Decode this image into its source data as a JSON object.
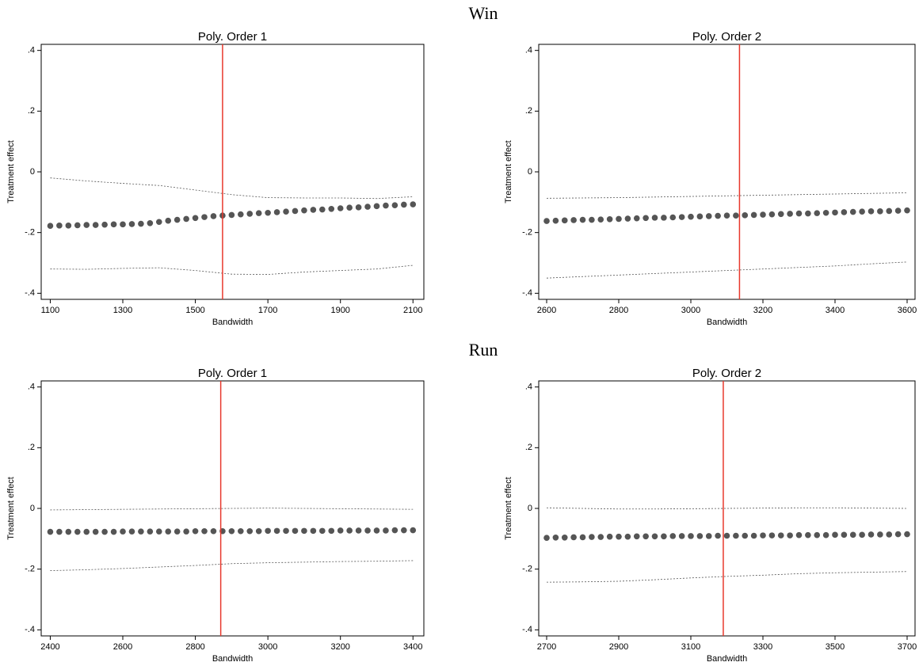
{
  "row_titles": [
    "Win",
    "Run"
  ],
  "chart_data": [
    {
      "type": "scatter",
      "title": "Poly. Order 1",
      "xlabel": "Bandwidth",
      "ylabel": "Treatment effect",
      "xlim": [
        1075,
        2130
      ],
      "ylim": [
        -0.42,
        0.42
      ],
      "xticks": [
        1100,
        1300,
        1500,
        1700,
        1900,
        2100
      ],
      "yticks": [
        {
          "value": -0.4,
          "label": "-.4"
        },
        {
          "value": -0.2,
          "label": "-.2"
        },
        0,
        {
          "value": 0.2,
          "label": ".2"
        },
        {
          "value": 0.4,
          "label": ".4"
        }
      ],
      "color": "#555555",
      "vline": 1575,
      "vline_color": "#e8382c",
      "x": [
        1100,
        1125,
        1150,
        1175,
        1200,
        1225,
        1250,
        1275,
        1300,
        1325,
        1350,
        1375,
        1400,
        1425,
        1450,
        1475,
        1500,
        1525,
        1550,
        1575,
        1600,
        1625,
        1650,
        1675,
        1700,
        1725,
        1750,
        1775,
        1800,
        1825,
        1850,
        1875,
        1900,
        1925,
        1950,
        1975,
        2000,
        2025,
        2050,
        2075,
        2100
      ],
      "values": [
        -0.178,
        -0.177,
        -0.177,
        -0.176,
        -0.175,
        -0.175,
        -0.174,
        -0.173,
        -0.173,
        -0.172,
        -0.171,
        -0.169,
        -0.165,
        -0.161,
        -0.158,
        -0.155,
        -0.152,
        -0.149,
        -0.146,
        -0.144,
        -0.142,
        -0.14,
        -0.138,
        -0.136,
        -0.135,
        -0.133,
        -0.131,
        -0.129,
        -0.127,
        -0.125,
        -0.124,
        -0.122,
        -0.12,
        -0.118,
        -0.117,
        -0.115,
        -0.113,
        -0.111,
        -0.11,
        -0.108,
        -0.107
      ],
      "ci_x": [
        1100,
        1200,
        1300,
        1400,
        1500,
        1600,
        1700,
        1800,
        1900,
        2000,
        2100
      ],
      "ci_upper": [
        -0.02,
        -0.03,
        -0.038,
        -0.045,
        -0.06,
        -0.075,
        -0.085,
        -0.086,
        -0.086,
        -0.088,
        -0.082
      ],
      "ci_lower": [
        -0.32,
        -0.321,
        -0.318,
        -0.316,
        -0.325,
        -0.337,
        -0.338,
        -0.33,
        -0.325,
        -0.32,
        -0.308
      ]
    },
    {
      "type": "scatter",
      "title": "Poly. Order 2",
      "xlabel": "Bandwidth",
      "ylabel": "Treatment effect",
      "xlim": [
        2578,
        3622
      ],
      "ylim": [
        -0.42,
        0.42
      ],
      "xticks": [
        2600,
        2800,
        3000,
        3200,
        3400,
        3600
      ],
      "yticks": [
        {
          "value": -0.4,
          "label": "-.4"
        },
        {
          "value": -0.2,
          "label": "-.2"
        },
        0,
        {
          "value": 0.2,
          "label": ".2"
        },
        {
          "value": 0.4,
          "label": ".4"
        }
      ],
      "color": "#555555",
      "vline": 3135,
      "vline_color": "#e8382c",
      "x": [
        2600,
        2625,
        2650,
        2675,
        2700,
        2725,
        2750,
        2775,
        2800,
        2825,
        2850,
        2875,
        2900,
        2925,
        2950,
        2975,
        3000,
        3025,
        3050,
        3075,
        3100,
        3125,
        3150,
        3175,
        3200,
        3225,
        3250,
        3275,
        3300,
        3325,
        3350,
        3375,
        3400,
        3425,
        3450,
        3475,
        3500,
        3525,
        3550,
        3575,
        3600
      ],
      "values": [
        -0.162,
        -0.161,
        -0.16,
        -0.159,
        -0.158,
        -0.158,
        -0.157,
        -0.156,
        -0.155,
        -0.154,
        -0.153,
        -0.152,
        -0.151,
        -0.151,
        -0.15,
        -0.149,
        -0.148,
        -0.147,
        -0.146,
        -0.145,
        -0.144,
        -0.144,
        -0.143,
        -0.142,
        -0.141,
        -0.14,
        -0.139,
        -0.138,
        -0.137,
        -0.137,
        -0.136,
        -0.135,
        -0.134,
        -0.133,
        -0.132,
        -0.131,
        -0.13,
        -0.13,
        -0.129,
        -0.128,
        -0.127
      ],
      "ci_x": [
        2600,
        2700,
        2800,
        2900,
        3000,
        3100,
        3200,
        3300,
        3400,
        3500,
        3600
      ],
      "ci_upper": [
        -0.087,
        -0.086,
        -0.085,
        -0.083,
        -0.081,
        -0.079,
        -0.077,
        -0.075,
        -0.073,
        -0.071,
        -0.069
      ],
      "ci_lower": [
        -0.35,
        -0.345,
        -0.34,
        -0.335,
        -0.33,
        -0.325,
        -0.32,
        -0.315,
        -0.31,
        -0.303,
        -0.297
      ]
    },
    {
      "type": "scatter",
      "title": "Poly. Order 1",
      "xlabel": "Bandwidth",
      "ylabel": "Treatment effect",
      "xlim": [
        2375,
        3430
      ],
      "ylim": [
        -0.42,
        0.42
      ],
      "xticks": [
        2400,
        2600,
        2800,
        3000,
        3200,
        3400
      ],
      "yticks": [
        {
          "value": -0.4,
          "label": "-.4"
        },
        {
          "value": -0.2,
          "label": "-.2"
        },
        0,
        {
          "value": 0.2,
          "label": ".2"
        },
        {
          "value": 0.4,
          "label": ".4"
        }
      ],
      "color": "#555555",
      "vline": 2870,
      "vline_color": "#e8382c",
      "x": [
        2400,
        2425,
        2450,
        2475,
        2500,
        2525,
        2550,
        2575,
        2600,
        2625,
        2650,
        2675,
        2700,
        2725,
        2750,
        2775,
        2800,
        2825,
        2850,
        2875,
        2900,
        2925,
        2950,
        2975,
        3000,
        3025,
        3050,
        3075,
        3100,
        3125,
        3150,
        3175,
        3200,
        3225,
        3250,
        3275,
        3300,
        3325,
        3350,
        3375,
        3400
      ],
      "values": [
        -0.077,
        -0.077,
        -0.077,
        -0.077,
        -0.077,
        -0.077,
        -0.077,
        -0.077,
        -0.076,
        -0.076,
        -0.076,
        -0.076,
        -0.076,
        -0.076,
        -0.076,
        -0.076,
        -0.075,
        -0.075,
        -0.075,
        -0.075,
        -0.075,
        -0.075,
        -0.075,
        -0.075,
        -0.074,
        -0.074,
        -0.074,
        -0.074,
        -0.074,
        -0.074,
        -0.074,
        -0.074,
        -0.073,
        -0.073,
        -0.073,
        -0.073,
        -0.073,
        -0.073,
        -0.072,
        -0.072,
        -0.072
      ],
      "ci_x": [
        2400,
        2500,
        2600,
        2700,
        2800,
        2900,
        3000,
        3100,
        3200,
        3300,
        3400
      ],
      "ci_upper": [
        -0.005,
        -0.004,
        -0.003,
        -0.002,
        -0.001,
        0.0,
        0.001,
        0.0,
        -0.001,
        -0.002,
        -0.003
      ],
      "ci_lower": [
        -0.205,
        -0.202,
        -0.198,
        -0.193,
        -0.188,
        -0.182,
        -0.179,
        -0.177,
        -0.175,
        -0.174,
        -0.172
      ]
    },
    {
      "type": "scatter",
      "title": "Poly. Order 2",
      "xlabel": "Bandwidth",
      "ylabel": "Treatment effect",
      "xlim": [
        2678,
        3722
      ],
      "ylim": [
        -0.42,
        0.42
      ],
      "xticks": [
        2700,
        2900,
        3100,
        3300,
        3500,
        3700
      ],
      "yticks": [
        {
          "value": -0.4,
          "label": "-.4"
        },
        {
          "value": -0.2,
          "label": "-.2"
        },
        0,
        {
          "value": 0.2,
          "label": ".2"
        },
        {
          "value": 0.4,
          "label": ".4"
        }
      ],
      "color": "#555555",
      "vline": 3190,
      "vline_color": "#e8382c",
      "x": [
        2700,
        2725,
        2750,
        2775,
        2800,
        2825,
        2850,
        2875,
        2900,
        2925,
        2950,
        2975,
        3000,
        3025,
        3050,
        3075,
        3100,
        3125,
        3150,
        3175,
        3200,
        3225,
        3250,
        3275,
        3300,
        3325,
        3350,
        3375,
        3400,
        3425,
        3450,
        3475,
        3500,
        3525,
        3550,
        3575,
        3600,
        3625,
        3650,
        3675,
        3700
      ],
      "values": [
        -0.097,
        -0.096,
        -0.096,
        -0.095,
        -0.095,
        -0.094,
        -0.094,
        -0.093,
        -0.093,
        -0.093,
        -0.092,
        -0.092,
        -0.092,
        -0.092,
        -0.091,
        -0.091,
        -0.091,
        -0.091,
        -0.091,
        -0.09,
        -0.09,
        -0.09,
        -0.09,
        -0.09,
        -0.089,
        -0.089,
        -0.089,
        -0.089,
        -0.088,
        -0.088,
        -0.088,
        -0.088,
        -0.087,
        -0.087,
        -0.087,
        -0.087,
        -0.086,
        -0.086,
        -0.086,
        -0.085,
        -0.085
      ],
      "ci_x": [
        2700,
        2800,
        2900,
        3000,
        3100,
        3200,
        3300,
        3400,
        3500,
        3600,
        3700
      ],
      "ci_upper": [
        0.002,
        0.0,
        -0.002,
        -0.002,
        -0.001,
        0.0,
        0.001,
        0.002,
        0.002,
        0.001,
        0.0
      ],
      "ci_lower": [
        -0.243,
        -0.242,
        -0.24,
        -0.235,
        -0.229,
        -0.224,
        -0.22,
        -0.215,
        -0.212,
        -0.21,
        -0.208
      ]
    }
  ]
}
